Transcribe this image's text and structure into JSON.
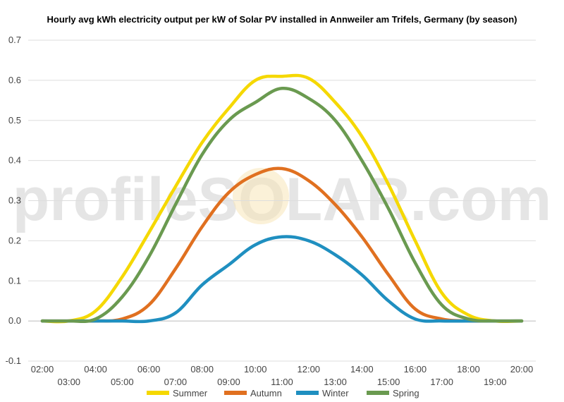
{
  "chart_data": {
    "type": "line",
    "title": "Hourly avg kWh electricity output per kW of Solar PV installed in Annweiler am Trifels, Germany (by season)",
    "xlabel": "",
    "ylabel": "",
    "ylim": [
      -0.1,
      0.7
    ],
    "yticks": [
      -0.1,
      0.0,
      0.1,
      0.2,
      0.3,
      0.4,
      0.5,
      0.6,
      0.7
    ],
    "grid": true,
    "legend": "bottom",
    "x": [
      "02:00",
      "03:00",
      "04:00",
      "05:00",
      "06:00",
      "07:00",
      "08:00",
      "09:00",
      "10:00",
      "11:00",
      "12:00",
      "13:00",
      "14:00",
      "15:00",
      "16:00",
      "17:00",
      "18:00",
      "19:00",
      "20:00"
    ],
    "series": [
      {
        "name": "Summer",
        "color": "#f5d800",
        "values": [
          0.0,
          0.0,
          0.025,
          0.11,
          0.22,
          0.335,
          0.445,
          0.53,
          0.6,
          0.61,
          0.605,
          0.545,
          0.46,
          0.34,
          0.2,
          0.07,
          0.015,
          0.0,
          0.0
        ]
      },
      {
        "name": "Autumn",
        "color": "#e07020",
        "values": [
          0.0,
          0.0,
          0.0,
          0.005,
          0.04,
          0.13,
          0.235,
          0.32,
          0.365,
          0.38,
          0.35,
          0.29,
          0.21,
          0.115,
          0.03,
          0.005,
          0.0,
          0.0,
          0.0
        ]
      },
      {
        "name": "Winter",
        "color": "#1f8fc0",
        "values": [
          0.0,
          0.0,
          0.0,
          0.0,
          0.0,
          0.02,
          0.09,
          0.14,
          0.19,
          0.21,
          0.2,
          0.165,
          0.115,
          0.05,
          0.005,
          0.0,
          0.0,
          0.0,
          0.0
        ]
      },
      {
        "name": "Spring",
        "color": "#6a9a50",
        "values": [
          0.0,
          0.0,
          0.005,
          0.06,
          0.16,
          0.29,
          0.415,
          0.5,
          0.545,
          0.58,
          0.555,
          0.5,
          0.4,
          0.28,
          0.145,
          0.04,
          0.005,
          0.0,
          0.0
        ]
      }
    ]
  },
  "watermark": "profileSOLAR.com"
}
